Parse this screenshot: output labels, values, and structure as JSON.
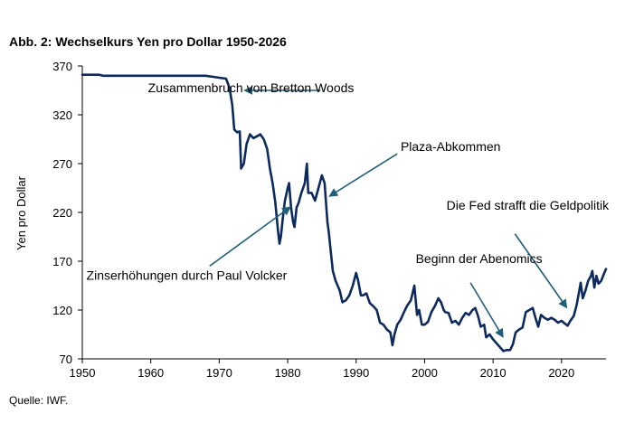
{
  "title": "Abb. 2: Wechselkurs Yen pro Dollar 1950-2026",
  "source": "Quelle: IWF.",
  "colors": {
    "line": "#0d2a5e",
    "arrow": "#1f5f7a",
    "axis": "#000000"
  },
  "chart_data": {
    "type": "line",
    "title": "Abb. 2: Wechselkurs Yen pro Dollar 1950-2026",
    "xlabel": "",
    "ylabel": "Yen pro Dollar",
    "xlim": [
      1950,
      2026.5
    ],
    "ylim": [
      70,
      370
    ],
    "x_ticks": [
      1950,
      1960,
      1970,
      1980,
      1990,
      2000,
      2010,
      2020
    ],
    "y_ticks": [
      70,
      120,
      170,
      220,
      270,
      320,
      370
    ],
    "grid": false,
    "series": [
      {
        "values": [
          [
            1950,
            361
          ],
          [
            1952.5,
            361
          ],
          [
            1953,
            360
          ],
          [
            1960,
            360
          ],
          [
            1968,
            360
          ],
          [
            1969,
            359
          ],
          [
            1970,
            358
          ],
          [
            1971,
            357
          ],
          [
            1971.5,
            348
          ],
          [
            1971.9,
            330
          ],
          [
            1972.2,
            305
          ],
          [
            1972.6,
            302
          ],
          [
            1973.0,
            303
          ],
          [
            1973.2,
            265
          ],
          [
            1973.6,
            270
          ],
          [
            1974.0,
            290
          ],
          [
            1974.5,
            300
          ],
          [
            1975.0,
            296
          ],
          [
            1975.5,
            298
          ],
          [
            1976.0,
            300
          ],
          [
            1976.5,
            295
          ],
          [
            1977.0,
            285
          ],
          [
            1977.4,
            265
          ],
          [
            1977.8,
            250
          ],
          [
            1978.2,
            230
          ],
          [
            1978.6,
            200
          ],
          [
            1978.8,
            188
          ],
          [
            1979.0,
            195
          ],
          [
            1979.3,
            215
          ],
          [
            1979.6,
            232
          ],
          [
            1980.0,
            245
          ],
          [
            1980.2,
            250
          ],
          [
            1980.5,
            225
          ],
          [
            1980.8,
            210
          ],
          [
            1981.0,
            205
          ],
          [
            1981.3,
            225
          ],
          [
            1981.6,
            230
          ],
          [
            1982.0,
            240
          ],
          [
            1982.5,
            250
          ],
          [
            1982.8,
            270
          ],
          [
            1983.0,
            240
          ],
          [
            1983.5,
            240
          ],
          [
            1984.0,
            232
          ],
          [
            1984.5,
            245
          ],
          [
            1985.0,
            258
          ],
          [
            1985.4,
            250
          ],
          [
            1985.8,
            210
          ],
          [
            1986.0,
            200
          ],
          [
            1986.3,
            180
          ],
          [
            1986.6,
            160
          ],
          [
            1987.0,
            150
          ],
          [
            1987.3,
            145
          ],
          [
            1987.6,
            140
          ],
          [
            1988.0,
            128
          ],
          [
            1988.5,
            130
          ],
          [
            1989.0,
            135
          ],
          [
            1989.5,
            145
          ],
          [
            1990.0,
            158
          ],
          [
            1990.3,
            150
          ],
          [
            1990.7,
            135
          ],
          [
            1991.0,
            135
          ],
          [
            1991.5,
            137
          ],
          [
            1992.0,
            127
          ],
          [
            1992.5,
            124
          ],
          [
            1993.0,
            120
          ],
          [
            1993.5,
            107
          ],
          [
            1994.0,
            105
          ],
          [
            1994.5,
            100
          ],
          [
            1995.0,
            97
          ],
          [
            1995.3,
            84
          ],
          [
            1995.6,
            95
          ],
          [
            1996.0,
            105
          ],
          [
            1996.5,
            110
          ],
          [
            1997.0,
            118
          ],
          [
            1997.5,
            125
          ],
          [
            1998.0,
            130
          ],
          [
            1998.5,
            145
          ],
          [
            1998.9,
            115
          ],
          [
            1999.2,
            120
          ],
          [
            1999.6,
            105
          ],
          [
            2000.0,
            105
          ],
          [
            2000.5,
            108
          ],
          [
            2001.0,
            118
          ],
          [
            2001.5,
            124
          ],
          [
            2002.0,
            132
          ],
          [
            2002.4,
            128
          ],
          [
            2002.8,
            120
          ],
          [
            2003.0,
            118
          ],
          [
            2003.5,
            117
          ],
          [
            2004.0,
            107
          ],
          [
            2004.5,
            109
          ],
          [
            2005.0,
            105
          ],
          [
            2005.5,
            112
          ],
          [
            2006.0,
            117
          ],
          [
            2006.5,
            115
          ],
          [
            2007.0,
            120
          ],
          [
            2007.4,
            122
          ],
          [
            2007.8,
            114
          ],
          [
            2008.2,
            103
          ],
          [
            2008.7,
            105
          ],
          [
            2009.0,
            92
          ],
          [
            2009.5,
            95
          ],
          [
            2010.0,
            90
          ],
          [
            2010.5,
            86
          ],
          [
            2011.0,
            82
          ],
          [
            2011.5,
            78
          ],
          [
            2012.0,
            79
          ],
          [
            2012.5,
            79
          ],
          [
            2012.9,
            85
          ],
          [
            2013.3,
            97
          ],
          [
            2013.8,
            100
          ],
          [
            2014.3,
            102
          ],
          [
            2014.8,
            118
          ],
          [
            2015.3,
            120
          ],
          [
            2015.8,
            122
          ],
          [
            2016.2,
            112
          ],
          [
            2016.6,
            103
          ],
          [
            2017.0,
            115
          ],
          [
            2017.5,
            112
          ],
          [
            2018.0,
            110
          ],
          [
            2018.5,
            112
          ],
          [
            2019.0,
            110
          ],
          [
            2019.5,
            107
          ],
          [
            2020.0,
            109
          ],
          [
            2020.5,
            106
          ],
          [
            2020.9,
            104
          ],
          [
            2021.3,
            109
          ],
          [
            2021.8,
            114
          ],
          [
            2022.2,
            125
          ],
          [
            2022.6,
            140
          ],
          [
            2022.8,
            148
          ],
          [
            2023.1,
            132
          ],
          [
            2023.5,
            140
          ],
          [
            2023.9,
            150
          ],
          [
            2024.3,
            155
          ],
          [
            2024.5,
            160
          ],
          [
            2024.8,
            143
          ],
          [
            2025.1,
            155
          ],
          [
            2025.4,
            147
          ],
          [
            2025.8,
            150
          ],
          [
            2026.2,
            157
          ],
          [
            2026.5,
            162
          ]
        ]
      }
    ],
    "annotations": [
      {
        "text": "Zusammenbruch von Bretton Woods",
        "text_x": 1959.6,
        "text_y": 343,
        "arrow_from": [
          1984.8,
          345
        ],
        "arrow_to": [
          1973.8,
          345
        ]
      },
      {
        "text": "Plaza-Abkommen",
        "text_x": 1996.5,
        "text_y": 283,
        "arrow_from": [
          1996.0,
          280
        ],
        "arrow_to": [
          1986.2,
          237
        ]
      },
      {
        "text": "Die Fed strafft die Geldpolitik",
        "text_x": 2003.2,
        "text_y": 223,
        "arrow_from": [
          2013.2,
          198
        ],
        "arrow_to": [
          2020.7,
          123
        ]
      },
      {
        "text": "Zinserhöhungen durch Paul Volcker",
        "text_x": 1950.6,
        "text_y": 151,
        "arrow_from": [
          1968.6,
          165
        ],
        "arrow_to": [
          1980.3,
          225
        ]
      },
      {
        "text": "Beginn der Abenomics",
        "text_x": 1998.7,
        "text_y": 168,
        "arrow_from": [
          2006.7,
          148
        ],
        "arrow_to": [
          2011.4,
          93
        ]
      }
    ]
  }
}
